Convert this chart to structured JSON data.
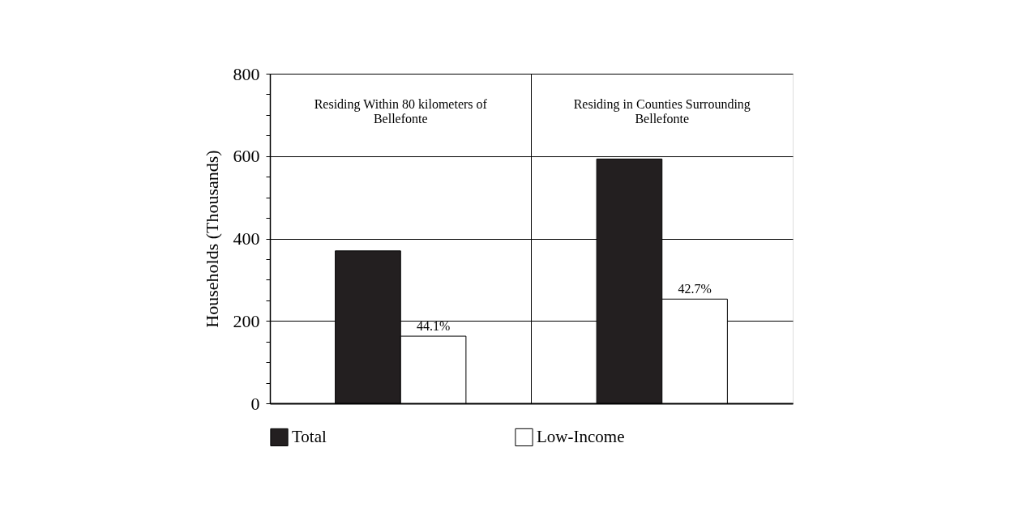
{
  "chart_data": {
    "type": "bar",
    "ylabel": "Households (Thousands)",
    "categories": [
      "Residing Within 80 kilometers of Bellefonte",
      "Residing in Counties Surrounding Bellefonte"
    ],
    "series": [
      {
        "name": "Total",
        "color": "#231f20",
        "values": [
          370,
          593
        ]
      },
      {
        "name": "Low-Income",
        "color": "#ffffff",
        "values": [
          163,
          253
        ]
      }
    ],
    "annotations": [
      {
        "text": "44.1%",
        "x": "Residing Within 80 kilometers of Bellefonte",
        "y": 163
      },
      {
        "text": "42.7%",
        "x": "Residing in Counties Surrounding Bellefonte",
        "y": 253
      }
    ],
    "ylim": [
      0,
      800
    ],
    "yticks": [
      0,
      {
        "value": 50,
        "label": null
      },
      {
        "value": 100,
        "label": null
      },
      {
        "value": 150,
        "label": null
      },
      200,
      {
        "value": 250,
        "label": null
      },
      {
        "value": 300,
        "label": null
      },
      {
        "value": 350,
        "label": null
      },
      400,
      {
        "value": 450,
        "label": null
      },
      {
        "value": 500,
        "label": null
      },
      {
        "value": 550,
        "label": null
      },
      600,
      {
        "value": 650,
        "label": null
      },
      {
        "value": 700,
        "label": null
      },
      {
        "value": 750,
        "label": null
      },
      800
    ],
    "grid": true,
    "legend": "bottom"
  }
}
